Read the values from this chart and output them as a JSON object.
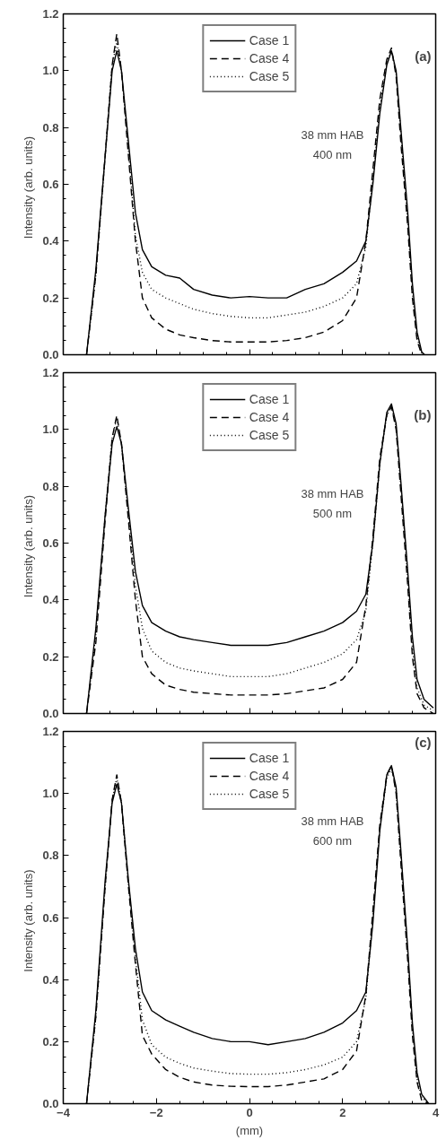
{
  "chart_data": [
    {
      "type": "line",
      "ylabel": "Intensity  (arb.  units)",
      "xlim": [
        -4,
        4
      ],
      "xticks": [
        -4,
        -2,
        0,
        2,
        4
      ],
      "ylim": [
        0,
        1.2
      ],
      "yticks": [
        {
          "value": 0,
          "label": "0.0"
        },
        {
          "value": 0.2,
          "label": "0.2"
        },
        {
          "value": 0.4,
          "label": "0.4"
        },
        {
          "value": 0.6,
          "label": "0.6"
        },
        {
          "value": 0.8,
          "label": "0.8"
        },
        {
          "value": 1,
          "label": "1.0"
        },
        {
          "value": 1.2,
          "label": "1.2"
        }
      ],
      "tick_labels": "y",
      "legend": "top",
      "grid": false,
      "annotations": [
        "(a)",
        "38 mm HAB",
        "400 nm"
      ],
      "x": [
        -3.5,
        -3.3,
        -3.1,
        -2.95,
        -2.85,
        -2.75,
        -2.6,
        -2.45,
        -2.3,
        -2.1,
        -1.8,
        -1.5,
        -1.2,
        -0.8,
        -0.4,
        0,
        0.4,
        0.8,
        1.2,
        1.6,
        2.0,
        2.3,
        2.5,
        2.65,
        2.8,
        2.95,
        3.05,
        3.15,
        3.25,
        3.4,
        3.5,
        3.6,
        3.7,
        3.76
      ],
      "series": [
        {
          "name": "Case 1",
          "color": "#000000",
          "line_style": "solid",
          "values": [
            0,
            0.3,
            0.7,
            1.0,
            1.07,
            1.0,
            0.75,
            0.5,
            0.37,
            0.31,
            0.28,
            0.27,
            0.23,
            0.21,
            0.2,
            0.205,
            0.2,
            0.2,
            0.23,
            0.25,
            0.29,
            0.33,
            0.4,
            0.6,
            0.85,
            1.02,
            1.07,
            1.0,
            0.8,
            0.5,
            0.25,
            0.08,
            0.01,
            0
          ]
        },
        {
          "name": "Case 4",
          "color": "#000000",
          "line_style": "dashed",
          "values": [
            0,
            0.28,
            0.7,
            1.02,
            1.13,
            1.0,
            0.7,
            0.4,
            0.2,
            0.13,
            0.09,
            0.07,
            0.06,
            0.05,
            0.045,
            0.045,
            0.045,
            0.05,
            0.06,
            0.08,
            0.12,
            0.2,
            0.4,
            0.65,
            0.9,
            1.04,
            1.08,
            0.98,
            0.75,
            0.45,
            0.2,
            0.05,
            0.0,
            0
          ]
        },
        {
          "name": "Case 5",
          "color": "#000000",
          "line_style": "dotted",
          "values": [
            0,
            0.28,
            0.7,
            1.02,
            1.1,
            1.0,
            0.72,
            0.42,
            0.29,
            0.23,
            0.2,
            0.18,
            0.16,
            0.145,
            0.135,
            0.13,
            0.13,
            0.14,
            0.15,
            0.17,
            0.2,
            0.25,
            0.38,
            0.62,
            0.87,
            1.03,
            1.07,
            0.99,
            0.78,
            0.47,
            0.22,
            0.06,
            0.005,
            0
          ]
        }
      ]
    },
    {
      "type": "line",
      "ylabel": "Intensity  (arb.  units)",
      "xlim": [
        -4,
        4
      ],
      "xticks": [
        -4,
        -2,
        0,
        2,
        4
      ],
      "ylim": [
        0,
        1.2
      ],
      "yticks": [
        {
          "value": 0,
          "label": "0.0"
        },
        {
          "value": 0.2,
          "label": "0.2"
        },
        {
          "value": 0.4,
          "label": "0.4"
        },
        {
          "value": 0.6,
          "label": "0.6"
        },
        {
          "value": 0.8,
          "label": "0.8"
        },
        {
          "value": 1,
          "label": "1.0"
        },
        {
          "value": 1.2,
          "label": "1.2"
        }
      ],
      "tick_labels": "y",
      "legend": "top",
      "grid": false,
      "annotations": [
        "(b)",
        "38 mm HAB",
        "500 nm"
      ],
      "x": [
        -3.5,
        -3.3,
        -3.1,
        -2.95,
        -2.85,
        -2.75,
        -2.6,
        -2.45,
        -2.3,
        -2.1,
        -1.8,
        -1.5,
        -1.2,
        -0.8,
        -0.4,
        0,
        0.4,
        0.8,
        1.2,
        1.6,
        2.0,
        2.3,
        2.5,
        2.65,
        2.8,
        2.95,
        3.05,
        3.15,
        3.25,
        3.4,
        3.5,
        3.6,
        3.75,
        3.95
      ],
      "series": [
        {
          "name": "Case 1",
          "color": "#000000",
          "line_style": "solid",
          "values": [
            0,
            0.3,
            0.7,
            0.95,
            1.01,
            0.95,
            0.72,
            0.5,
            0.38,
            0.32,
            0.29,
            0.27,
            0.26,
            0.25,
            0.24,
            0.24,
            0.24,
            0.25,
            0.27,
            0.29,
            0.32,
            0.36,
            0.42,
            0.6,
            0.88,
            1.06,
            1.09,
            1.02,
            0.82,
            0.5,
            0.27,
            0.12,
            0.05,
            0.02
          ]
        },
        {
          "name": "Case 4",
          "color": "#000000",
          "line_style": "dashed",
          "values": [
            0,
            0.25,
            0.68,
            0.97,
            1.05,
            0.95,
            0.68,
            0.4,
            0.2,
            0.14,
            0.1,
            0.085,
            0.075,
            0.07,
            0.065,
            0.065,
            0.065,
            0.07,
            0.08,
            0.09,
            0.12,
            0.18,
            0.38,
            0.62,
            0.9,
            1.05,
            1.08,
            1.0,
            0.78,
            0.45,
            0.2,
            0.07,
            0.02,
            0
          ]
        },
        {
          "name": "Case 5",
          "color": "#000000",
          "line_style": "dotted",
          "values": [
            0,
            0.28,
            0.7,
            0.97,
            1.04,
            0.95,
            0.7,
            0.45,
            0.3,
            0.22,
            0.18,
            0.16,
            0.15,
            0.14,
            0.13,
            0.13,
            0.13,
            0.14,
            0.16,
            0.18,
            0.21,
            0.26,
            0.36,
            0.6,
            0.88,
            1.05,
            1.08,
            1.01,
            0.8,
            0.48,
            0.23,
            0.09,
            0.03,
            0.01
          ]
        }
      ]
    },
    {
      "type": "line",
      "ylabel": "Intensity  (arb.  units)",
      "xlabel": "(mm)",
      "xlim": [
        -4,
        4
      ],
      "xticks": [
        -4,
        -2,
        0,
        2,
        4
      ],
      "ylim": [
        0,
        1.2
      ],
      "yticks": [
        {
          "value": 0,
          "label": "0.0"
        },
        {
          "value": 0.2,
          "label": "0.2"
        },
        {
          "value": 0.4,
          "label": "0.4"
        },
        {
          "value": 0.6,
          "label": "0.6"
        },
        {
          "value": 0.8,
          "label": "0.8"
        },
        {
          "value": 1,
          "label": "1.0"
        },
        {
          "value": 1.2,
          "label": "1.2"
        }
      ],
      "legend": "top",
      "grid": false,
      "annotations": [
        "(c)",
        "38 mm HAB",
        "600 nm"
      ],
      "x": [
        -3.5,
        -3.3,
        -3.1,
        -2.95,
        -2.85,
        -2.75,
        -2.6,
        -2.45,
        -2.3,
        -2.1,
        -1.8,
        -1.5,
        -1.2,
        -0.8,
        -0.4,
        0,
        0.4,
        0.8,
        1.2,
        1.6,
        2.0,
        2.3,
        2.5,
        2.65,
        2.8,
        2.95,
        3.05,
        3.15,
        3.25,
        3.4,
        3.5,
        3.6,
        3.7,
        3.85
      ],
      "series": [
        {
          "name": "Case 1",
          "color": "#000000",
          "line_style": "solid",
          "values": [
            0,
            0.3,
            0.72,
            0.97,
            1.03,
            0.97,
            0.72,
            0.5,
            0.36,
            0.3,
            0.27,
            0.25,
            0.23,
            0.21,
            0.2,
            0.2,
            0.19,
            0.2,
            0.21,
            0.23,
            0.26,
            0.3,
            0.36,
            0.58,
            0.88,
            1.06,
            1.09,
            1.02,
            0.82,
            0.5,
            0.26,
            0.1,
            0.03,
            0
          ]
        },
        {
          "name": "Case 4",
          "color": "#000000",
          "line_style": "dashed",
          "values": [
            0,
            0.28,
            0.7,
            0.98,
            1.06,
            0.97,
            0.7,
            0.45,
            0.22,
            0.16,
            0.11,
            0.085,
            0.07,
            0.06,
            0.056,
            0.055,
            0.055,
            0.06,
            0.07,
            0.08,
            0.11,
            0.17,
            0.35,
            0.62,
            0.9,
            1.06,
            1.09,
            1.0,
            0.78,
            0.46,
            0.22,
            0.07,
            0.01,
            0
          ]
        },
        {
          "name": "Case 5",
          "color": "#000000",
          "line_style": "dotted",
          "values": [
            0,
            0.28,
            0.7,
            0.98,
            1.05,
            0.97,
            0.71,
            0.47,
            0.27,
            0.19,
            0.15,
            0.13,
            0.115,
            0.105,
            0.097,
            0.095,
            0.095,
            0.1,
            0.11,
            0.125,
            0.15,
            0.2,
            0.34,
            0.6,
            0.89,
            1.05,
            1.08,
            1.01,
            0.8,
            0.48,
            0.24,
            0.08,
            0.02,
            0
          ]
        }
      ]
    }
  ]
}
